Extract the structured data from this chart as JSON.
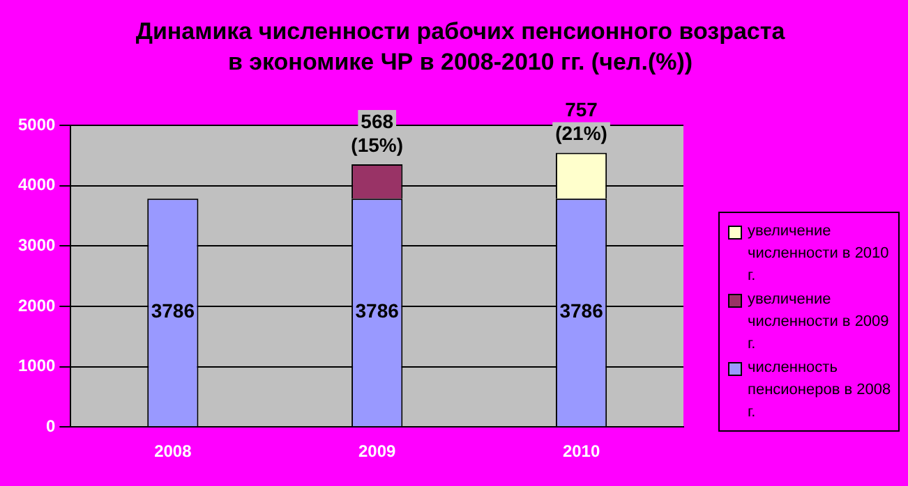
{
  "chart_data": {
    "type": "bar",
    "title": "Динамика численности рабочих пенсионного возраста в экономике ЧР в 2008-2010 гг. (чел.(%))",
    "categories": [
      "2008",
      "2009",
      "2010"
    ],
    "series": [
      {
        "name": "численность пенсионеров в 2008 г.",
        "color": "#9999ff",
        "values": [
          3786,
          3786,
          3786
        ],
        "value_labels": [
          "3786",
          "3786",
          "3786"
        ]
      },
      {
        "name": "увеличение численности в 2009 г.",
        "color": "#993366",
        "values": [
          null,
          568,
          null
        ],
        "value_labels": [
          null,
          "568 (15%)",
          null
        ]
      },
      {
        "name": "увеличение численности в 2010 г.",
        "color": "#ffffcc",
        "values": [
          null,
          null,
          757
        ],
        "value_labels": [
          null,
          null,
          "757 (21%)"
        ]
      }
    ],
    "stacked": true,
    "ylim": [
      0,
      5000
    ],
    "yticks": [
      0,
      1000,
      2000,
      3000,
      4000,
      5000
    ],
    "grid": "y",
    "legend": "right"
  }
}
